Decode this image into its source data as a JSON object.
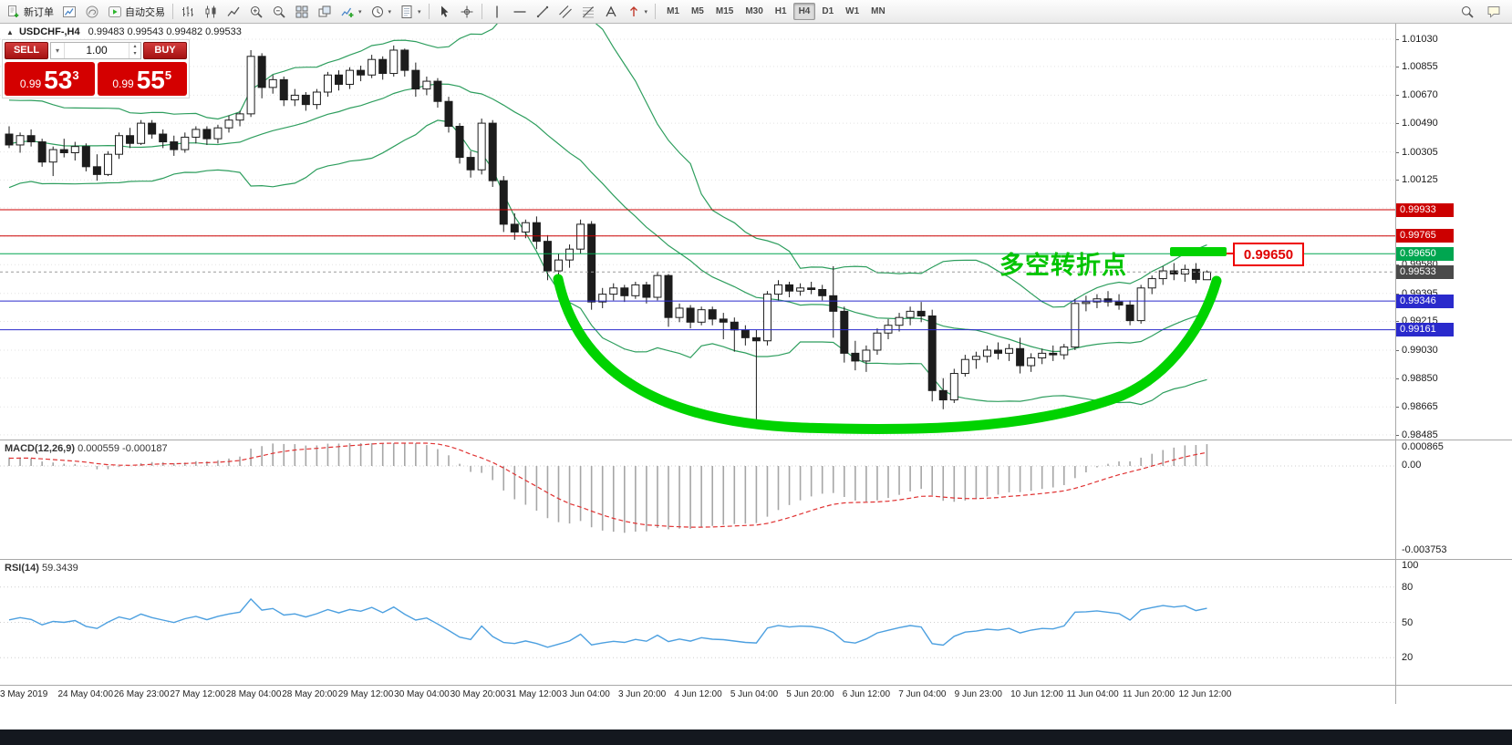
{
  "toolbar": {
    "caret_glyph": "▾",
    "items": [
      {
        "type": "button",
        "icon": "new-order-icon",
        "label": "新订单"
      },
      {
        "type": "icon",
        "icon": "charts-icon"
      },
      {
        "type": "icon",
        "icon": "community-icon"
      },
      {
        "type": "button",
        "icon": "autotrade-icon",
        "label": "自动交易"
      },
      {
        "type": "sep"
      },
      {
        "type": "icon",
        "icon": "bar-chart-icon"
      },
      {
        "type": "icon",
        "icon": "candle-chart-icon"
      },
      {
        "type": "icon",
        "icon": "line-chart-icon"
      },
      {
        "type": "icon",
        "icon": "zoom-in-icon"
      },
      {
        "type": "icon",
        "icon": "zoom-out-icon"
      },
      {
        "type": "icon",
        "icon": "tile-windows-icon"
      },
      {
        "type": "icon",
        "icon": "arrange-icon"
      },
      {
        "type": "icon",
        "icon": "indicators-icon",
        "caret": true
      },
      {
        "type": "icon",
        "icon": "periods-icon",
        "caret": true
      },
      {
        "type": "icon",
        "icon": "template-icon",
        "caret": true
      },
      {
        "type": "sep"
      },
      {
        "type": "icon",
        "icon": "cursor-icon"
      },
      {
        "type": "icon",
        "icon": "crosshair-icon"
      },
      {
        "type": "sep"
      },
      {
        "type": "icon",
        "icon": "vertical-line-icon"
      },
      {
        "type": "icon",
        "icon": "horizontal-line-icon"
      },
      {
        "type": "icon",
        "icon": "trendline-icon"
      },
      {
        "type": "icon",
        "icon": "channel-icon"
      },
      {
        "type": "icon",
        "icon": "fibonacci-icon"
      },
      {
        "type": "icon",
        "icon": "text-icon"
      },
      {
        "type": "icon",
        "icon": "arrows-icon",
        "caret": true
      },
      {
        "type": "sep"
      }
    ],
    "timeframes": [
      "M1",
      "M5",
      "M15",
      "M30",
      "H1",
      "H4",
      "D1",
      "W1",
      "MN"
    ],
    "active_timeframe": "H4",
    "right_items": [
      {
        "icon": "search-icon"
      },
      {
        "icon": "chat-icon"
      }
    ]
  },
  "chart": {
    "marker_glyph": "▲",
    "symbol_title": "USDCHF-,H4",
    "ohlc_text": "0.99483 0.99543 0.99482 0.99533",
    "axis": {
      "ticks": [
        "1.01030",
        "1.00855",
        "1.00670",
        "1.00490",
        "1.00305",
        "1.00125",
        "0.99945",
        "0.99765",
        "0.99580",
        "0.99395",
        "0.99215",
        "0.99030",
        "0.98850",
        "0.98665",
        "0.98485"
      ]
    },
    "hlines": [
      {
        "price": 0.99933,
        "color": "#cc0000",
        "label": "0.99933"
      },
      {
        "price": 0.99765,
        "color": "#cc0000",
        "label": "0.99765"
      },
      {
        "price": 0.9965,
        "color": "#00a650",
        "label": "0.99650"
      },
      {
        "price": 0.99346,
        "color": "#2a2acc",
        "label": "0.99346"
      },
      {
        "price": 0.99161,
        "color": "#2a2acc",
        "label": "0.99161"
      }
    ],
    "bid": {
      "price": 0.99533,
      "label": "0.99533",
      "box_color": "#4a4a4a"
    }
  },
  "trade_panel": {
    "sell_label": "SELL",
    "buy_label": "BUY",
    "volume": "1.00",
    "dropdown_glyph": "▾",
    "step_up_glyph": "▴",
    "step_down_glyph": "▾",
    "sell_price": {
      "base": "0.99",
      "pips": "53",
      "point": "3"
    },
    "buy_price": {
      "base": "0.99",
      "pips": "55",
      "point": "5"
    }
  },
  "annotations": {
    "label": "多空转折点",
    "label_color": "#00c400",
    "curve_color": "#00d300",
    "callout": "0.99650",
    "callout_color": "#ee0000"
  },
  "macd": {
    "name": "MACD(12,26,9)",
    "values": "0.000559 -0.000187",
    "axis_labels": [
      "0.000865",
      "0.00",
      "-0.003753"
    ]
  },
  "rsi": {
    "name": "RSI(14)",
    "value": "59.3439",
    "axis_labels": [
      "100",
      "80",
      "50",
      "20"
    ]
  },
  "time_axis": {
    "labels": [
      "3 May 2019",
      "24 May 04:00",
      "26 May 23:00",
      "27 May 12:00",
      "28 May 04:00",
      "28 May 20:00",
      "29 May 12:00",
      "30 May 04:00",
      "30 May 20:00",
      "31 May 12:00",
      "3 Jun 04:00",
      "3 Jun 20:00",
      "4 Jun 12:00",
      "5 Jun 04:00",
      "5 Jun 20:00",
      "6 Jun 12:00",
      "7 Jun 04:00",
      "9 Jun 23:00",
      "10 Jun 12:00",
      "11 Jun 04:00",
      "11 Jun 20:00",
      "12 Jun 12:00"
    ]
  },
  "chart_data": {
    "type": "candlestick",
    "symbol": "USDCHF-",
    "timeframe": "H4",
    "columns": [
      "open",
      "high",
      "low",
      "close"
    ],
    "price_axis_top": 1.0113,
    "price_axis_bottom": 0.98455,
    "overlays": {
      "bollinger_bands": {
        "period": 20,
        "deviation": 2,
        "color": "#2e9e5e"
      }
    },
    "indicators": [
      {
        "name": "MACD",
        "params": [
          12,
          26,
          9
        ],
        "histogram_color": "#a6a6a6",
        "signal_color": "#e03333",
        "axis_max": 0.000865,
        "axis_min": -0.003753
      },
      {
        "name": "RSI",
        "params": [
          14
        ],
        "color": "#4da0e0",
        "levels": [
          80,
          50,
          20
        ]
      }
    ],
    "candles": [
      [
        1.0042,
        1.0047,
        1.0033,
        1.0035
      ],
      [
        1.0035,
        1.0043,
        1.003,
        1.0041
      ],
      [
        1.0041,
        1.0045,
        1.0034,
        1.0037
      ],
      [
        1.0037,
        1.0039,
        1.0021,
        1.0024
      ],
      [
        1.0024,
        1.0034,
        1.0015,
        1.0032
      ],
      [
        1.0032,
        1.0039,
        1.0027,
        1.003
      ],
      [
        1.003,
        1.0037,
        1.0025,
        1.0034
      ],
      [
        1.0034,
        1.0036,
        1.0018,
        1.0021
      ],
      [
        1.0021,
        1.0029,
        1.0012,
        1.0016
      ],
      [
        1.0016,
        1.0031,
        1.0015,
        1.0029
      ],
      [
        1.0029,
        1.0043,
        1.0026,
        1.0041
      ],
      [
        1.0041,
        1.0046,
        1.0033,
        1.0036
      ],
      [
        1.0036,
        1.0051,
        1.0035,
        1.0049
      ],
      [
        1.0049,
        1.0051,
        1.0039,
        1.0042
      ],
      [
        1.0042,
        1.0045,
        1.0033,
        1.0037
      ],
      [
        1.0037,
        1.0041,
        1.0028,
        1.0032
      ],
      [
        1.0032,
        1.0043,
        1.003,
        1.004
      ],
      [
        1.004,
        1.0047,
        1.0036,
        1.0045
      ],
      [
        1.0045,
        1.0047,
        1.0035,
        1.0039
      ],
      [
        1.0039,
        1.0048,
        1.0036,
        1.0046
      ],
      [
        1.0046,
        1.0054,
        1.0043,
        1.0051
      ],
      [
        1.0051,
        1.0057,
        1.0047,
        1.0055
      ],
      [
        1.0055,
        1.0096,
        1.0053,
        1.0092
      ],
      [
        1.0092,
        1.0094,
        1.0065,
        1.0072
      ],
      [
        1.0072,
        1.008,
        1.0068,
        1.0077
      ],
      [
        1.0077,
        1.0079,
        1.006,
        1.0064
      ],
      [
        1.0064,
        1.0071,
        1.006,
        1.0067
      ],
      [
        1.0067,
        1.0069,
        1.0057,
        1.0061
      ],
      [
        1.0061,
        1.0071,
        1.0058,
        1.0069
      ],
      [
        1.0069,
        1.0082,
        1.0066,
        1.008
      ],
      [
        1.008,
        1.0083,
        1.007,
        1.0074
      ],
      [
        1.0074,
        1.0085,
        1.0071,
        1.0083
      ],
      [
        1.0083,
        1.0086,
        1.0076,
        1.008
      ],
      [
        1.008,
        1.0093,
        1.0078,
        1.009
      ],
      [
        1.009,
        1.0092,
        1.0077,
        1.0081
      ],
      [
        1.0081,
        1.0099,
        1.0079,
        1.0096
      ],
      [
        1.0096,
        1.0097,
        1.0079,
        1.0083
      ],
      [
        1.0083,
        1.0088,
        1.0066,
        1.0071
      ],
      [
        1.0071,
        1.0079,
        1.0067,
        1.0076
      ],
      [
        1.0076,
        1.0078,
        1.0059,
        1.0063
      ],
      [
        1.0063,
        1.0066,
        1.0043,
        1.0047
      ],
      [
        1.0047,
        1.0049,
        1.0023,
        1.0027
      ],
      [
        1.0027,
        1.0031,
        1.0014,
        1.0019
      ],
      [
        1.0019,
        1.0052,
        1.0016,
        1.0049
      ],
      [
        1.0049,
        1.0051,
        1.0008,
        1.0012
      ],
      [
        1.0012,
        1.0015,
        0.9979,
        0.9984
      ],
      [
        0.9984,
        0.9991,
        0.9974,
        0.9979
      ],
      [
        0.9979,
        0.9987,
        0.9975,
        0.9985
      ],
      [
        0.9985,
        0.9989,
        0.9968,
        0.9973
      ],
      [
        0.9973,
        0.9977,
        0.9948,
        0.9954
      ],
      [
        0.9954,
        0.9965,
        0.995,
        0.9961
      ],
      [
        0.9961,
        0.9971,
        0.9956,
        0.9968
      ],
      [
        0.9968,
        0.9987,
        0.9965,
        0.9984
      ],
      [
        0.9984,
        0.9986,
        0.9929,
        0.9934
      ],
      [
        0.9934,
        0.9943,
        0.993,
        0.9939
      ],
      [
        0.9939,
        0.9946,
        0.9935,
        0.9943
      ],
      [
        0.9943,
        0.9945,
        0.9934,
        0.9938
      ],
      [
        0.9938,
        0.9947,
        0.9936,
        0.9945
      ],
      [
        0.9945,
        0.9947,
        0.9933,
        0.9937
      ],
      [
        0.9937,
        0.9953,
        0.9935,
        0.9951
      ],
      [
        0.9951,
        0.9952,
        0.9918,
        0.9924
      ],
      [
        0.9924,
        0.9933,
        0.9921,
        0.993
      ],
      [
        0.993,
        0.9932,
        0.9917,
        0.9921
      ],
      [
        0.9921,
        0.9931,
        0.9919,
        0.9929
      ],
      [
        0.9929,
        0.9931,
        0.9919,
        0.9923
      ],
      [
        0.9923,
        0.9927,
        0.991,
        0.9921
      ],
      [
        0.9921,
        0.9924,
        0.9902,
        0.9916
      ],
      [
        0.9916,
        0.9919,
        0.9906,
        0.9911
      ],
      [
        0.9911,
        0.9916,
        0.9856,
        0.9909
      ],
      [
        0.9909,
        0.9941,
        0.9906,
        0.9939
      ],
      [
        0.9939,
        0.9948,
        0.9935,
        0.9945
      ],
      [
        0.9945,
        0.9947,
        0.9937,
        0.9941
      ],
      [
        0.9941,
        0.9946,
        0.9938,
        0.9943
      ],
      [
        0.9943,
        0.9947,
        0.9939,
        0.9942
      ],
      [
        0.9942,
        0.9945,
        0.9935,
        0.9938
      ],
      [
        0.9938,
        0.9957,
        0.9911,
        0.9928
      ],
      [
        0.9928,
        0.9931,
        0.9895,
        0.9901
      ],
      [
        0.9901,
        0.9909,
        0.989,
        0.9896
      ],
      [
        0.9896,
        0.9906,
        0.9889,
        0.9903
      ],
      [
        0.9903,
        0.9917,
        0.99,
        0.9914
      ],
      [
        0.9914,
        0.9923,
        0.991,
        0.9919
      ],
      [
        0.9919,
        0.9927,
        0.9915,
        0.9924
      ],
      [
        0.9924,
        0.9931,
        0.9919,
        0.9928
      ],
      [
        0.9928,
        0.9934,
        0.9921,
        0.9925
      ],
      [
        0.9925,
        0.9929,
        0.987,
        0.9877
      ],
      [
        0.9877,
        0.9885,
        0.9865,
        0.9871
      ],
      [
        0.9871,
        0.9891,
        0.9869,
        0.9888
      ],
      [
        0.9888,
        0.99,
        0.9886,
        0.9897
      ],
      [
        0.9897,
        0.9902,
        0.9891,
        0.9899
      ],
      [
        0.9899,
        0.9906,
        0.9895,
        0.9903
      ],
      [
        0.9903,
        0.9908,
        0.9897,
        0.9901
      ],
      [
        0.9901,
        0.9907,
        0.9896,
        0.9904
      ],
      [
        0.9904,
        0.9911,
        0.9888,
        0.9893
      ],
      [
        0.9893,
        0.9901,
        0.9889,
        0.9898
      ],
      [
        0.9898,
        0.9904,
        0.9894,
        0.9901
      ],
      [
        0.9901,
        0.9906,
        0.9896,
        0.99
      ],
      [
        0.99,
        0.9907,
        0.9897,
        0.9905
      ],
      [
        0.9905,
        0.9936,
        0.9903,
        0.9933
      ],
      [
        0.9933,
        0.9938,
        0.9928,
        0.9934
      ],
      [
        0.9934,
        0.9939,
        0.993,
        0.9936
      ],
      [
        0.9936,
        0.9941,
        0.9931,
        0.9934
      ],
      [
        0.9934,
        0.9939,
        0.9929,
        0.9932
      ],
      [
        0.9932,
        0.9935,
        0.9919,
        0.9922
      ],
      [
        0.9922,
        0.9945,
        0.992,
        0.9943
      ],
      [
        0.9943,
        0.9951,
        0.9939,
        0.9949
      ],
      [
        0.9949,
        0.9957,
        0.9945,
        0.9954
      ],
      [
        0.9954,
        0.9959,
        0.9948,
        0.9952
      ],
      [
        0.9952,
        0.9958,
        0.9947,
        0.9955
      ],
      [
        0.9955,
        0.9959,
        0.9946,
        0.99485
      ],
      [
        0.99483,
        0.99543,
        0.99482,
        0.99533
      ]
    ]
  }
}
